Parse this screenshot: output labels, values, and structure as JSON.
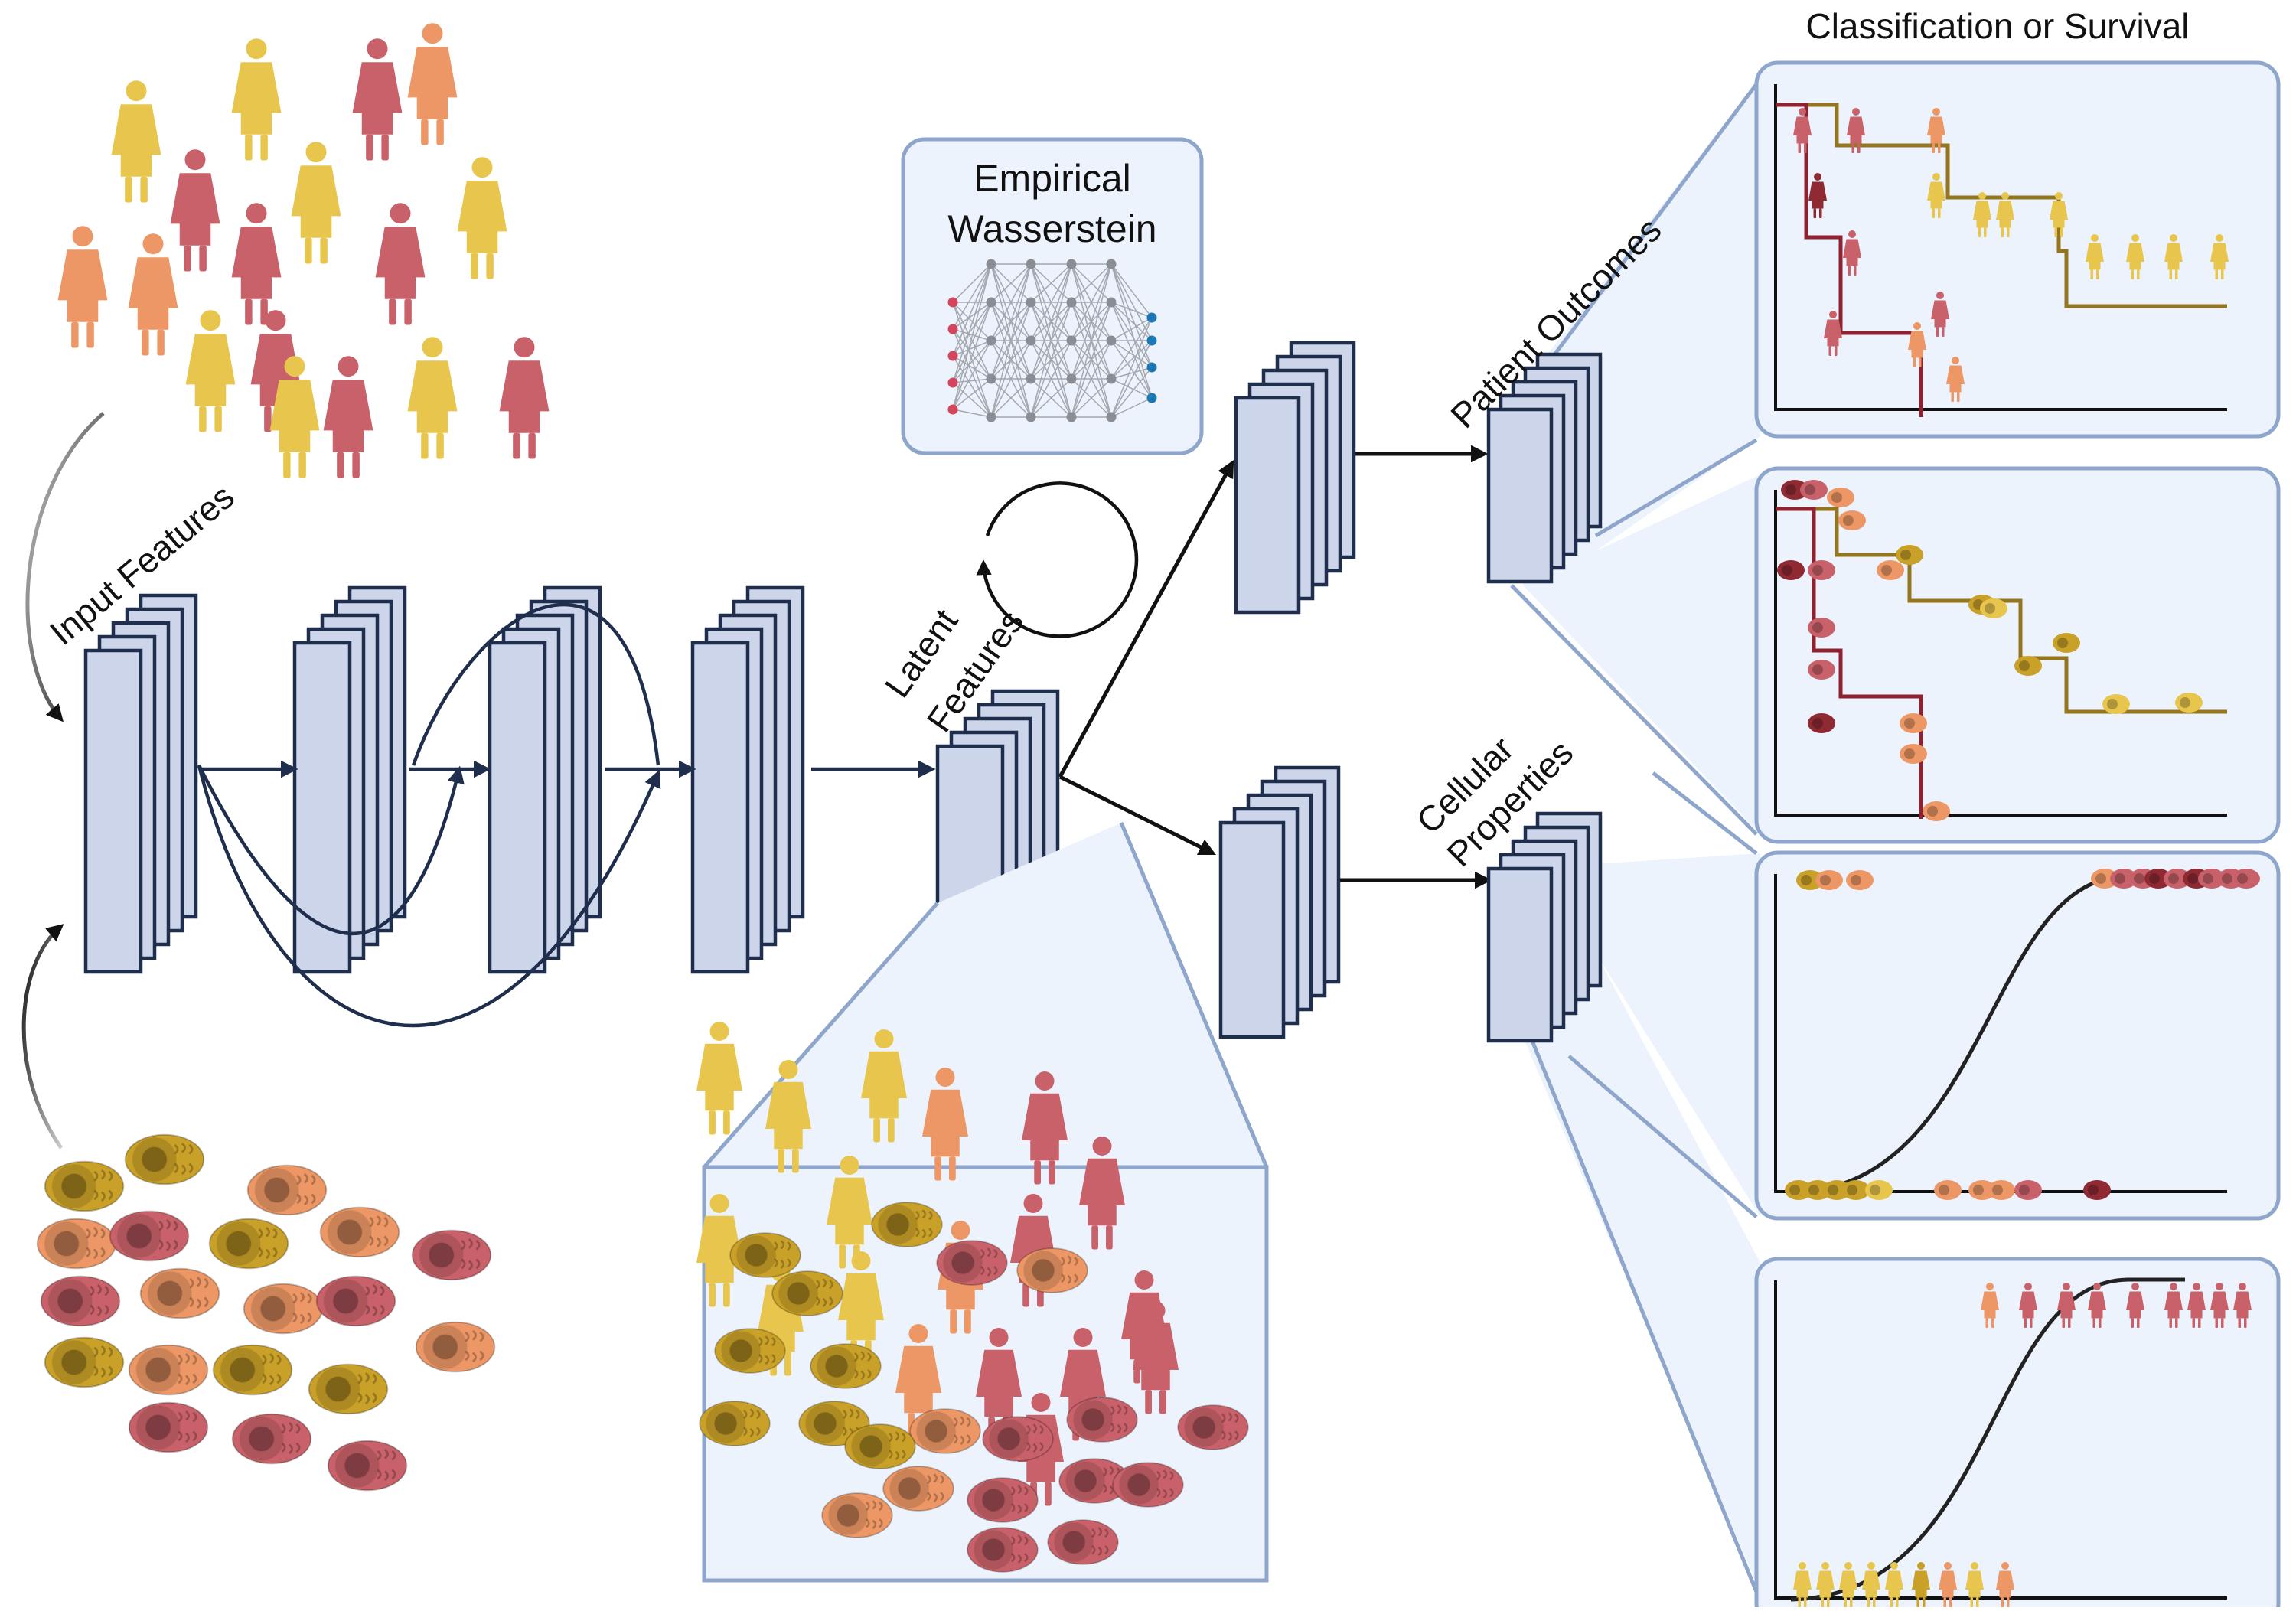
{
  "labels": {
    "input_features": "Input Features",
    "latent_features_line1": "Latent",
    "latent_features_line2": "Features",
    "empirical_line1": "Empirical",
    "empirical_line2": "Wasserstein",
    "patient_outcomes": "Patient Outcomes",
    "cellular_line1": "Cellular",
    "cellular_line2": "Properties",
    "panel_title": "Classification or Survival"
  },
  "colors": {
    "layer_fill": "#ccd5ea",
    "layer_stroke": "#1f2e4d",
    "panel_fill": "#ecf3fc",
    "panel_stroke": "#8ea5cc",
    "yellow": "#e8c64e",
    "gold": "#c9a028",
    "orange": "#ec9765",
    "red": "#c9616a",
    "darkred": "#8f2a33",
    "survival_gold": "#947621",
    "survival_red": "#8e2230",
    "sigmoid": "#222222"
  },
  "icons": {
    "patient": "patient-gown-icon",
    "cell": "cell-bundle-icon",
    "network": "neural-network-icon"
  },
  "panels": [
    {
      "name": "survival-panel-patients",
      "type": "survival"
    },
    {
      "name": "survival-panel-cells",
      "type": "survival"
    },
    {
      "name": "classification-panel-cells",
      "type": "sigmoid"
    },
    {
      "name": "classification-panel-patients",
      "type": "sigmoid"
    }
  ]
}
